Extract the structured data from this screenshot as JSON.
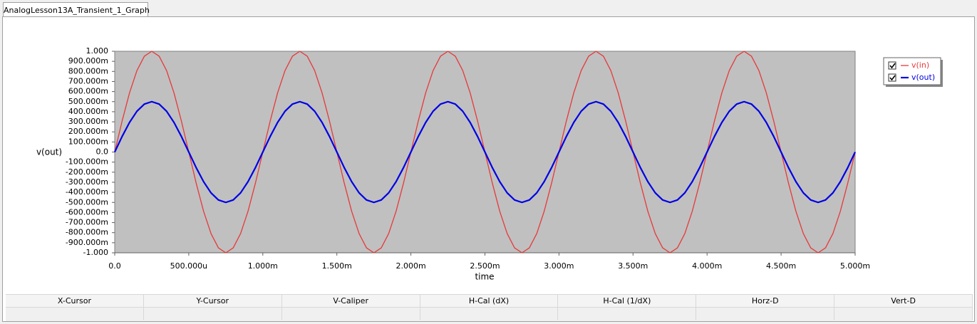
{
  "tab": {
    "title": "AnalogLesson13A_Transient_1_Graph"
  },
  "chart_data": {
    "type": "line",
    "ylabel": "v(out)",
    "xlabel": "time",
    "x": [
      0,
      5e-05,
      0.0001,
      0.00015,
      0.0002,
      0.00025,
      0.0003,
      0.00035,
      0.0004,
      0.00045,
      0.0005,
      0.00055,
      0.0006,
      0.00065,
      0.0007,
      0.00075,
      0.0008,
      0.00085,
      0.0009,
      0.00095,
      0.001,
      0.00105,
      0.0011,
      0.00115,
      0.0012,
      0.00125,
      0.0013,
      0.00135,
      0.0014,
      0.00145,
      0.0015,
      0.00155,
      0.0016,
      0.00165,
      0.0017,
      0.00175,
      0.0018,
      0.00185,
      0.0019,
      0.00195,
      0.002,
      0.00205,
      0.0021,
      0.00215,
      0.0022,
      0.00225,
      0.0023,
      0.00235,
      0.0024,
      0.00245,
      0.0025,
      0.00255,
      0.0026,
      0.00265,
      0.0027,
      0.00275,
      0.0028,
      0.00285,
      0.0029,
      0.00295,
      0.003,
      0.00305,
      0.0031,
      0.00315,
      0.0032,
      0.00325,
      0.0033,
      0.00335,
      0.0034,
      0.00345,
      0.0035,
      0.00355,
      0.0036,
      0.00365,
      0.0037,
      0.00375,
      0.0038,
      0.00385,
      0.0039,
      0.00395,
      0.004,
      0.00405,
      0.0041,
      0.00415,
      0.0042,
      0.00425,
      0.0043,
      0.00435,
      0.0044,
      0.00445,
      0.0045,
      0.00455,
      0.0046,
      0.00465,
      0.0047,
      0.00475,
      0.0048,
      0.00485,
      0.0049,
      0.00495,
      0.005
    ],
    "series": [
      {
        "name": "v(in)",
        "color": "#e8383a",
        "values": [
          0,
          0.309,
          0.588,
          0.809,
          0.951,
          1,
          0.951,
          0.809,
          0.588,
          0.309,
          0,
          -0.309,
          -0.588,
          -0.809,
          -0.951,
          -1,
          -0.951,
          -0.809,
          -0.588,
          -0.309,
          0,
          0.309,
          0.588,
          0.809,
          0.951,
          1,
          0.951,
          0.809,
          0.588,
          0.309,
          0,
          -0.309,
          -0.588,
          -0.809,
          -0.951,
          -1,
          -0.951,
          -0.809,
          -0.588,
          -0.309,
          0,
          0.309,
          0.588,
          0.809,
          0.951,
          1,
          0.951,
          0.809,
          0.588,
          0.309,
          0,
          -0.309,
          -0.588,
          -0.809,
          -0.951,
          -1,
          -0.951,
          -0.809,
          -0.588,
          -0.309,
          0,
          0.309,
          0.588,
          0.809,
          0.951,
          1,
          0.951,
          0.809,
          0.588,
          0.309,
          0,
          -0.309,
          -0.588,
          -0.809,
          -0.951,
          -1,
          -0.951,
          -0.809,
          -0.588,
          -0.309,
          0,
          0.309,
          0.588,
          0.809,
          0.951,
          1,
          0.951,
          0.809,
          0.588,
          0.309,
          0,
          -0.309,
          -0.588,
          -0.809,
          -0.951,
          -1,
          -0.951,
          -0.809,
          -0.588,
          -0.309,
          0
        ]
      },
      {
        "name": "v(out)",
        "color": "#0000e6",
        "values": [
          0,
          0.155,
          0.294,
          0.405,
          0.476,
          0.5,
          0.476,
          0.405,
          0.294,
          0.155,
          0,
          -0.155,
          -0.294,
          -0.405,
          -0.476,
          -0.5,
          -0.476,
          -0.405,
          -0.294,
          -0.155,
          0,
          0.155,
          0.294,
          0.405,
          0.476,
          0.5,
          0.476,
          0.405,
          0.294,
          0.155,
          0,
          -0.155,
          -0.294,
          -0.405,
          -0.476,
          -0.5,
          -0.476,
          -0.405,
          -0.294,
          -0.155,
          0,
          0.155,
          0.294,
          0.405,
          0.476,
          0.5,
          0.476,
          0.405,
          0.294,
          0.155,
          0,
          -0.155,
          -0.294,
          -0.405,
          -0.476,
          -0.5,
          -0.476,
          -0.405,
          -0.294,
          -0.155,
          0,
          0.155,
          0.294,
          0.405,
          0.476,
          0.5,
          0.476,
          0.405,
          0.294,
          0.155,
          0,
          -0.155,
          -0.294,
          -0.405,
          -0.476,
          -0.5,
          -0.476,
          -0.405,
          -0.294,
          -0.155,
          0,
          0.155,
          0.294,
          0.405,
          0.476,
          0.5,
          0.476,
          0.405,
          0.294,
          0.155,
          0,
          -0.155,
          -0.294,
          -0.405,
          -0.476,
          -0.5,
          -0.476,
          -0.405,
          -0.294,
          -0.155,
          0
        ]
      }
    ],
    "xlim": [
      0,
      0.005
    ],
    "xticks": [
      {
        "value": 0,
        "label": "0.0"
      },
      {
        "value": 0.0005,
        "label": "500.000u"
      },
      {
        "value": 0.001,
        "label": "1.000m"
      },
      {
        "value": 0.0015,
        "label": "1.500m"
      },
      {
        "value": 0.002,
        "label": "2.000m"
      },
      {
        "value": 0.0025,
        "label": "2.500m"
      },
      {
        "value": 0.003,
        "label": "3.000m"
      },
      {
        "value": 0.0035,
        "label": "3.500m"
      },
      {
        "value": 0.004,
        "label": "4.000m"
      },
      {
        "value": 0.0045,
        "label": "4.500m"
      },
      {
        "value": 0.005,
        "label": "5.000m"
      }
    ],
    "ylim": [
      -1,
      1
    ],
    "yticks": [
      {
        "value": 1,
        "label": "1.000"
      },
      {
        "value": 0.9,
        "label": "900.000m"
      },
      {
        "value": 0.8,
        "label": "800.000m"
      },
      {
        "value": 0.7,
        "label": "700.000m"
      },
      {
        "value": 0.6,
        "label": "600.000m"
      },
      {
        "value": 0.5,
        "label": "500.000m"
      },
      {
        "value": 0.4,
        "label": "400.000m"
      },
      {
        "value": 0.3,
        "label": "300.000m"
      },
      {
        "value": 0.2,
        "label": "200.000m"
      },
      {
        "value": 0.1,
        "label": "100.000m"
      },
      {
        "value": 0,
        "label": "0.0"
      },
      {
        "value": -0.1,
        "label": "-100.000m"
      },
      {
        "value": -0.2,
        "label": "-200.000m"
      },
      {
        "value": -0.3,
        "label": "-300.000m"
      },
      {
        "value": -0.4,
        "label": "-400.000m"
      },
      {
        "value": -0.5,
        "label": "-500.000m"
      },
      {
        "value": -0.6,
        "label": "-600.000m"
      },
      {
        "value": -0.7,
        "label": "-700.000m"
      },
      {
        "value": -0.8,
        "label": "-800.000m"
      },
      {
        "value": -0.9,
        "label": "-900.000m"
      },
      {
        "value": -1,
        "label": "-1.000"
      }
    ],
    "grid": false,
    "plot_background": "#c0c0c0"
  },
  "status_bar": {
    "columns": [
      "X-Cursor",
      "Y-Cursor",
      "V-Caliper",
      "H-Cal (dX)",
      "H-Cal (1/dX)",
      "Horz-D",
      "Vert-D"
    ]
  }
}
